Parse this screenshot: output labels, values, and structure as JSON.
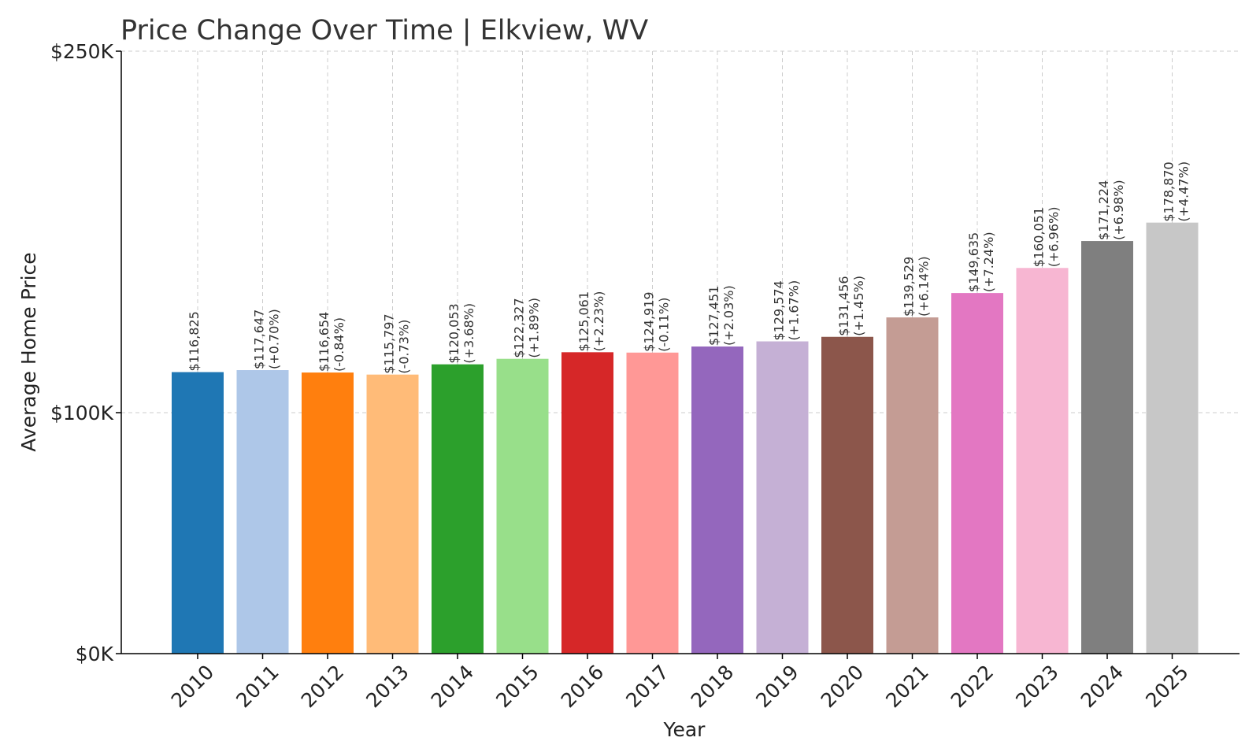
{
  "chart_data": {
    "type": "bar",
    "title": "Price Change Over Time | Elkview, WV",
    "xlabel": "Year",
    "ylabel": "Average Home Price",
    "ylim": [
      0,
      250000
    ],
    "y_ticks": [
      0,
      100000,
      250000
    ],
    "y_tick_labels": [
      "$0K",
      "$100K",
      "$250K"
    ],
    "grid": true,
    "categories": [
      "2010",
      "2011",
      "2012",
      "2013",
      "2014",
      "2015",
      "2016",
      "2017",
      "2018",
      "2019",
      "2020",
      "2021",
      "2022",
      "2023",
      "2024",
      "2025"
    ],
    "values": [
      116825,
      117647,
      116654,
      115797,
      120053,
      122327,
      125061,
      124919,
      127451,
      129574,
      131456,
      139529,
      149635,
      160051,
      171224,
      178870
    ],
    "value_labels": [
      "$116,825",
      "$117,647",
      "$116,654",
      "$115,797",
      "$120,053",
      "$122,327",
      "$125,061",
      "$124,919",
      "$127,451",
      "$129,574",
      "$131,456",
      "$139,529",
      "$149,635",
      "$160,051",
      "$171,224",
      "$178,870"
    ],
    "change_labels": [
      "",
      "(+0.70%)",
      "(-0.84%)",
      "(-0.73%)",
      "(+3.68%)",
      "(+1.89%)",
      "(+2.23%)",
      "(-0.11%)",
      "(+2.03%)",
      "(+1.67%)",
      "(+1.45%)",
      "(+6.14%)",
      "(+7.24%)",
      "(+6.96%)",
      "(+6.98%)",
      "(+4.47%)"
    ],
    "colors": [
      "#1f77b4",
      "#aec7e8",
      "#ff7f0e",
      "#ffbb78",
      "#2ca02c",
      "#98df8a",
      "#d62728",
      "#ff9896",
      "#9467bd",
      "#c5b0d5",
      "#8c564b",
      "#c49c94",
      "#e377c2",
      "#f7b6d2",
      "#7f7f7f",
      "#c7c7c7"
    ]
  }
}
